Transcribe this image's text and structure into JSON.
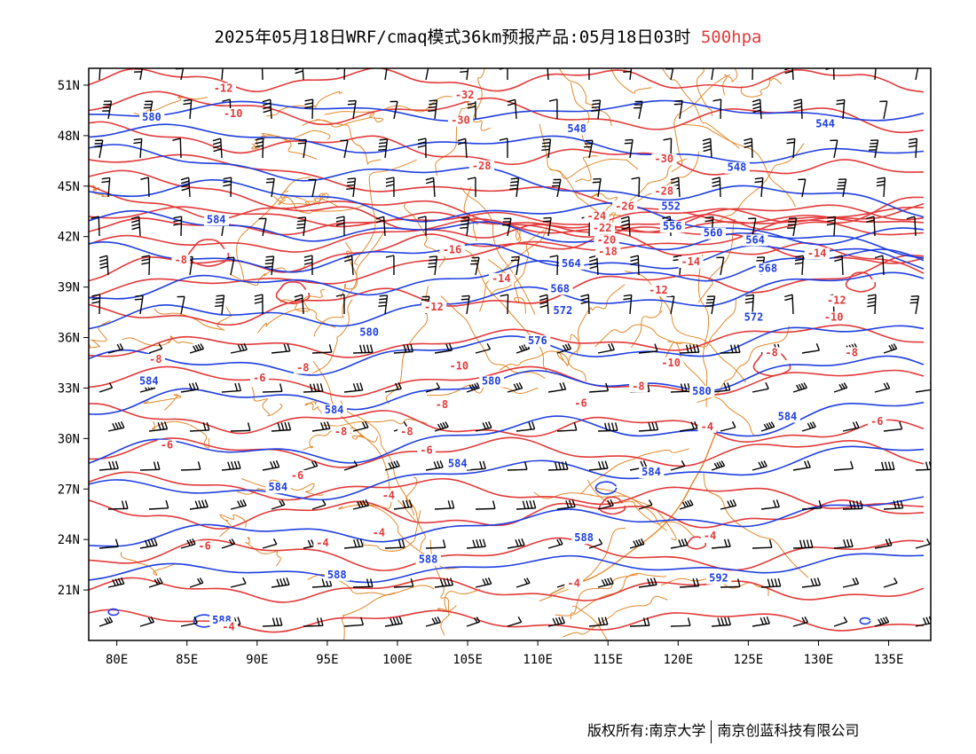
{
  "title": {
    "main": "2025年05月18日WRF/cmaq模式36km预报产品:05月18日03时",
    "level": "500hpa"
  },
  "footer": {
    "left": "版权所有:南京大学",
    "right": "南京创蓝科技有限公司"
  },
  "colors": {
    "height": "#1f3fe0",
    "temperature": "#e23a3a",
    "borders": "#e0892b",
    "wind": "#000000"
  },
  "map": {
    "lon_range": [
      78,
      138
    ],
    "lat_range": [
      18,
      52
    ],
    "lon_ticks": [
      {
        "value": 80,
        "label": "80E"
      },
      {
        "value": 85,
        "label": "85E"
      },
      {
        "value": 90,
        "label": "90E"
      },
      {
        "value": 95,
        "label": "95E"
      },
      {
        "value": 100,
        "label": "100E"
      },
      {
        "value": 105,
        "label": "105E"
      },
      {
        "value": 110,
        "label": "110E"
      },
      {
        "value": 115,
        "label": "115E"
      },
      {
        "value": 120,
        "label": "120E"
      },
      {
        "value": 125,
        "label": "125E"
      },
      {
        "value": 130,
        "label": "130E"
      },
      {
        "value": 135,
        "label": "135E"
      }
    ],
    "lat_ticks": [
      {
        "value": 51,
        "label": "51N"
      },
      {
        "value": 48,
        "label": "48N"
      },
      {
        "value": 45,
        "label": "45N"
      },
      {
        "value": 42,
        "label": "42N"
      },
      {
        "value": 39,
        "label": "39N"
      },
      {
        "value": 36,
        "label": "36N"
      },
      {
        "value": 33,
        "label": "33N"
      },
      {
        "value": 30,
        "label": "30N"
      },
      {
        "value": 27,
        "label": "27N"
      },
      {
        "value": 24,
        "label": "24N"
      },
      {
        "value": 21,
        "label": "21N"
      }
    ],
    "height_labels": [
      {
        "text": "580",
        "lon": 81.8,
        "lat": 48.9
      },
      {
        "text": "584",
        "lon": 86.4,
        "lat": 42.8
      },
      {
        "text": "548",
        "lon": 112.1,
        "lat": 48.2
      },
      {
        "text": "544",
        "lon": 129.8,
        "lat": 48.5
      },
      {
        "text": "548",
        "lon": 123.5,
        "lat": 45.9
      },
      {
        "text": "552",
        "lon": 118.8,
        "lat": 43.6
      },
      {
        "text": "556",
        "lon": 118.9,
        "lat": 42.4
      },
      {
        "text": "560",
        "lon": 121.8,
        "lat": 42.0
      },
      {
        "text": "564",
        "lon": 124.8,
        "lat": 41.6
      },
      {
        "text": "568",
        "lon": 125.7,
        "lat": 39.9
      },
      {
        "text": "564",
        "lon": 111.7,
        "lat": 40.2
      },
      {
        "text": "568",
        "lon": 110.9,
        "lat": 38.7
      },
      {
        "text": "572",
        "lon": 111.1,
        "lat": 37.4
      },
      {
        "text": "572",
        "lon": 124.7,
        "lat": 37.0
      },
      {
        "text": "576",
        "lon": 109.3,
        "lat": 35.6
      },
      {
        "text": "580",
        "lon": 97.3,
        "lat": 36.1
      },
      {
        "text": "580",
        "lon": 106.0,
        "lat": 33.2
      },
      {
        "text": "580",
        "lon": 121.0,
        "lat": 32.6
      },
      {
        "text": "584",
        "lon": 81.6,
        "lat": 33.2
      },
      {
        "text": "584",
        "lon": 94.8,
        "lat": 31.5
      },
      {
        "text": "584",
        "lon": 127.1,
        "lat": 31.1
      },
      {
        "text": "584",
        "lon": 103.6,
        "lat": 28.3
      },
      {
        "text": "584",
        "lon": 117.4,
        "lat": 27.8
      },
      {
        "text": "584",
        "lon": 90.8,
        "lat": 26.9
      },
      {
        "text": "588",
        "lon": 112.6,
        "lat": 23.9
      },
      {
        "text": "588",
        "lon": 101.5,
        "lat": 22.6
      },
      {
        "text": "588",
        "lon": 95.0,
        "lat": 21.7
      },
      {
        "text": "592",
        "lon": 122.2,
        "lat": 21.5
      },
      {
        "text": "588",
        "lon": 86.8,
        "lat": 19.0
      }
    ],
    "temp_labels": [
      {
        "text": "-12",
        "lon": 86.9,
        "lat": 50.6
      },
      {
        "text": "-10",
        "lon": 87.6,
        "lat": 49.1
      },
      {
        "text": "-32",
        "lon": 104.1,
        "lat": 50.2
      },
      {
        "text": "-30",
        "lon": 103.8,
        "lat": 48.7
      },
      {
        "text": "-30",
        "lon": 118.3,
        "lat": 46.4
      },
      {
        "text": "-28",
        "lon": 105.3,
        "lat": 46.0
      },
      {
        "text": "-28",
        "lon": 118.3,
        "lat": 44.5
      },
      {
        "text": "-26",
        "lon": 115.5,
        "lat": 43.6
      },
      {
        "text": "-24",
        "lon": 113.5,
        "lat": 43.0
      },
      {
        "text": "-22",
        "lon": 113.9,
        "lat": 42.3
      },
      {
        "text": "-20",
        "lon": 114.2,
        "lat": 41.6
      },
      {
        "text": "-18",
        "lon": 114.3,
        "lat": 40.9
      },
      {
        "text": "-16",
        "lon": 103.2,
        "lat": 41.0
      },
      {
        "text": "-14",
        "lon": 106.7,
        "lat": 39.3
      },
      {
        "text": "-14",
        "lon": 120.2,
        "lat": 40.3
      },
      {
        "text": "-14",
        "lon": 129.2,
        "lat": 40.8
      },
      {
        "text": "-12",
        "lon": 117.9,
        "lat": 38.6
      },
      {
        "text": "-12",
        "lon": 101.9,
        "lat": 37.6
      },
      {
        "text": "-12",
        "lon": 130.6,
        "lat": 38.0
      },
      {
        "text": "-10",
        "lon": 130.4,
        "lat": 37.0
      },
      {
        "text": "-10",
        "lon": 103.7,
        "lat": 34.1
      },
      {
        "text": "-10",
        "lon": 118.8,
        "lat": 34.3
      },
      {
        "text": "-8",
        "lon": 84.1,
        "lat": 40.4
      },
      {
        "text": "-8",
        "lon": 82.3,
        "lat": 34.5
      },
      {
        "text": "-8",
        "lon": 92.8,
        "lat": 34.0
      },
      {
        "text": "-8",
        "lon": 116.7,
        "lat": 32.9
      },
      {
        "text": "-8",
        "lon": 126.2,
        "lat": 34.9
      },
      {
        "text": "-8",
        "lon": 131.9,
        "lat": 34.9
      },
      {
        "text": "-8",
        "lon": 102.7,
        "lat": 31.8
      },
      {
        "text": "-8",
        "lon": 100.2,
        "lat": 30.2
      },
      {
        "text": "-8",
        "lon": 95.5,
        "lat": 30.2
      },
      {
        "text": "-6",
        "lon": 89.7,
        "lat": 33.4
      },
      {
        "text": "-6",
        "lon": 83.1,
        "lat": 29.4
      },
      {
        "text": "-6",
        "lon": 92.4,
        "lat": 27.6
      },
      {
        "text": "-6",
        "lon": 101.6,
        "lat": 29.1
      },
      {
        "text": "-6",
        "lon": 112.6,
        "lat": 31.9
      },
      {
        "text": "-6",
        "lon": 133.7,
        "lat": 30.8
      },
      {
        "text": "-6",
        "lon": 85.8,
        "lat": 23.4
      },
      {
        "text": "-4",
        "lon": 98.9,
        "lat": 26.4
      },
      {
        "text": "-4",
        "lon": 94.2,
        "lat": 23.6
      },
      {
        "text": "-4",
        "lon": 98.2,
        "lat": 24.2
      },
      {
        "text": "-4",
        "lon": 112.1,
        "lat": 21.2
      },
      {
        "text": "-4",
        "lon": 121.6,
        "lat": 30.5
      },
      {
        "text": "-4",
        "lon": 121.8,
        "lat": 24.0
      },
      {
        "text": "-4",
        "lon": 87.5,
        "lat": 18.6
      }
    ]
  }
}
